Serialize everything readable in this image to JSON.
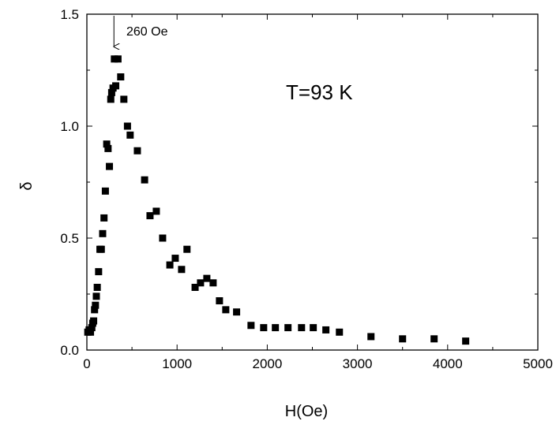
{
  "chart_data": {
    "type": "scatter",
    "title": "",
    "xlabel": "H(Oe)",
    "ylabel": "δ",
    "xlim": [
      0,
      5000
    ],
    "ylim": [
      0,
      1.5
    ],
    "x_ticks": [
      "0",
      "1000",
      "2000",
      "3000",
      "4000",
      "5000"
    ],
    "y_ticks": [
      "0.0",
      "0.5",
      "1.0",
      "1.5"
    ],
    "grid": false,
    "legend": "none",
    "marker_color": "#000000",
    "annotations": {
      "temperature": "T=93 K",
      "peak_label": "260 Oe",
      "peak_x": 300
    },
    "series": [
      {
        "x": [
          10,
          25,
          40,
          55,
          65,
          75,
          85,
          95,
          105,
          115,
          130,
          145,
          160,
          175,
          190,
          205,
          220,
          235,
          250,
          265,
          275,
          290,
          305,
          320,
          345,
          375,
          410,
          450,
          480,
          560,
          640,
          700,
          770,
          840,
          920,
          980,
          1050,
          1110,
          1200,
          1260,
          1330,
          1400,
          1470,
          1540,
          1660,
          1820,
          1960,
          2090,
          2230,
          2380,
          2510,
          2650,
          2800,
          3150,
          3500,
          3850,
          4200
        ],
        "y": [
          0.08,
          0.09,
          0.08,
          0.1,
          0.12,
          0.13,
          0.18,
          0.2,
          0.24,
          0.28,
          0.35,
          0.45,
          0.45,
          0.52,
          0.59,
          0.71,
          0.92,
          0.9,
          0.82,
          1.12,
          1.15,
          1.17,
          1.3,
          1.18,
          1.3,
          1.22,
          1.12,
          1.0,
          0.96,
          0.89,
          0.76,
          0.6,
          0.62,
          0.5,
          0.38,
          0.41,
          0.36,
          0.45,
          0.28,
          0.3,
          0.32,
          0.3,
          0.22,
          0.18,
          0.17,
          0.11,
          0.1,
          0.1,
          0.1,
          0.1,
          0.1,
          0.09,
          0.08,
          0.06,
          0.05,
          0.05,
          0.04
        ]
      }
    ]
  }
}
